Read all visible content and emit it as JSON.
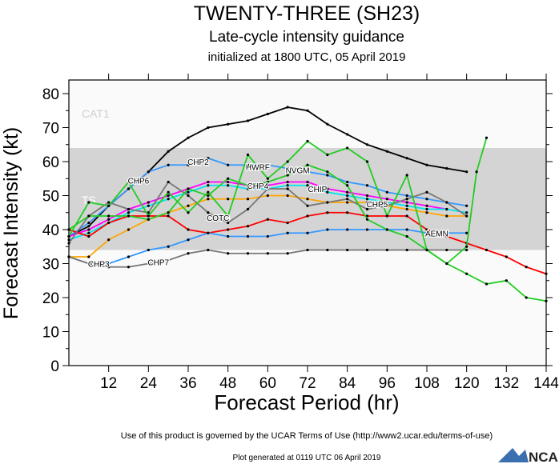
{
  "title": "TWENTY-THREE (SH23)",
  "subtitle": "Late-cycle intensity guidance",
  "initialized": "initialized at 1800 UTC, 05 April 2019",
  "footer_terms": "Use of this product is governed by the UCAR Terms of Use (http://www2.ucar.edu/terms-of-use)",
  "footer_generated": "Plot generated at 0119 UTC   06 April 2019",
  "logo_text": "NCAR",
  "chart_data": {
    "type": "line",
    "xlabel": "Forecast Period (hr)",
    "ylabel": "Forecast Intensity (kt)",
    "xlim": [
      0,
      144
    ],
    "ylim": [
      0,
      84
    ],
    "xticks": [
      12,
      24,
      36,
      48,
      60,
      72,
      84,
      96,
      108,
      120,
      132,
      144
    ],
    "yticks": [
      0,
      10,
      20,
      30,
      40,
      50,
      60,
      70,
      80
    ],
    "bands": [
      {
        "label": "CAT1",
        "from": 64,
        "to": 84,
        "color": "#fafafa"
      },
      {
        "label": "TS",
        "from": 34,
        "to": 64,
        "color": "#d4d4d4"
      },
      {
        "label": "",
        "from": 0,
        "to": 34,
        "color": "#fafafa"
      }
    ],
    "series": [
      {
        "name": "CHP6",
        "color": "#000000",
        "x": [
          0,
          6,
          12,
          18,
          24,
          30,
          36,
          42,
          48,
          54,
          60,
          66,
          72,
          78,
          84,
          90,
          96,
          102,
          108,
          114,
          120
        ],
        "values": [
          38,
          41,
          47,
          52,
          57,
          63,
          67,
          70,
          71,
          72,
          74,
          76,
          75,
          71,
          68,
          65,
          63,
          61,
          59,
          58,
          57
        ]
      },
      {
        "name": "CHP2",
        "color": "#3399ff",
        "x": [
          0,
          6,
          12,
          18,
          24,
          30,
          36,
          42,
          48,
          54,
          60,
          66,
          72,
          78,
          84,
          90,
          96,
          102,
          108,
          114,
          120
        ],
        "values": [
          38,
          42,
          47,
          52,
          57,
          59,
          59,
          61,
          59,
          59,
          59,
          58,
          57,
          56,
          54,
          53,
          51,
          50,
          49,
          48,
          47
        ]
      },
      {
        "name": "CHP4",
        "color": "#ff00ff",
        "x": [
          0,
          6,
          12,
          18,
          24,
          30,
          36,
          42,
          48,
          54,
          60,
          66,
          72,
          78,
          84,
          90,
          96,
          102,
          108,
          114
        ],
        "values": [
          38,
          40,
          43,
          46,
          48,
          50,
          52,
          54,
          54,
          53,
          53,
          54,
          54,
          52,
          51,
          50,
          49,
          48,
          47,
          46
        ]
      },
      {
        "name": "CHIP",
        "color": "#00e5ee",
        "x": [
          0,
          6,
          12,
          18,
          24,
          30,
          36,
          42,
          48,
          54,
          60,
          66,
          72,
          78,
          84,
          90,
          96,
          102,
          108,
          114,
          120
        ],
        "values": [
          37,
          39,
          42,
          45,
          47,
          49,
          51,
          53,
          53,
          52,
          52,
          53,
          53,
          51,
          50,
          49,
          48,
          47,
          46,
          46,
          45
        ]
      },
      {
        "name": "CHP5",
        "color": "#ffa500",
        "x": [
          0,
          6,
          12,
          18,
          24,
          30,
          36,
          42,
          48,
          54,
          60,
          66,
          72,
          78,
          84,
          90,
          96,
          102,
          108,
          114,
          120
        ],
        "values": [
          32,
          32,
          37,
          40,
          43,
          45,
          47,
          49,
          49,
          49,
          50,
          50,
          49,
          48,
          48,
          48,
          47,
          46,
          45,
          44,
          44
        ]
      },
      {
        "name": "AEMN",
        "color": "#ff0000",
        "x": [
          0,
          6,
          12,
          18,
          24,
          30,
          36,
          42,
          48,
          54,
          60,
          66,
          72,
          78,
          84,
          90,
          96,
          102,
          108,
          114,
          120,
          126,
          132,
          138,
          144
        ],
        "values": [
          40,
          38,
          42,
          44,
          44,
          44,
          40,
          39,
          40,
          41,
          43,
          42,
          44,
          45,
          45,
          44,
          44,
          44,
          40,
          38,
          36,
          34,
          32,
          29,
          27
        ]
      },
      {
        "name": "CHP3",
        "color": "#3399ff",
        "x": [
          0,
          6,
          12,
          18,
          24,
          30,
          36,
          42,
          48,
          54,
          60,
          66,
          72,
          78,
          84,
          90,
          96,
          102,
          108,
          114,
          120
        ],
        "values": [
          32,
          30,
          30,
          32,
          34,
          35,
          37,
          39,
          38,
          38,
          38,
          39,
          39,
          40,
          40,
          40,
          40,
          40,
          39,
          39,
          39
        ]
      },
      {
        "name": "CHP7",
        "color": "#777777",
        "x": [
          0,
          6,
          12,
          18,
          24,
          30,
          36,
          42,
          48,
          54,
          60,
          66,
          72,
          78,
          84,
          90,
          96,
          102,
          108,
          114,
          120
        ],
        "values": [
          32,
          30,
          29,
          29,
          30,
          31,
          33,
          34,
          33,
          33,
          33,
          33,
          34,
          34,
          34,
          34,
          34,
          34,
          34,
          34,
          34
        ]
      },
      {
        "name": "COTC",
        "color": "#777777",
        "x": [
          0,
          6,
          12,
          18,
          24,
          30,
          36,
          42,
          48,
          54,
          60,
          66,
          72,
          78,
          84,
          90,
          96,
          102,
          108,
          114,
          120
        ],
        "values": [
          36,
          44,
          48,
          46,
          45,
          54,
          50,
          45,
          42,
          46,
          52,
          52,
          47,
          48,
          49,
          46,
          47,
          49,
          51,
          48,
          44
        ]
      },
      {
        "name": "HWRF",
        "color": "#22cc22",
        "x": [
          0,
          6,
          12,
          18,
          24,
          30,
          36,
          42,
          48,
          54,
          60,
          66,
          72,
          78,
          84,
          90,
          96,
          102,
          108,
          114,
          120,
          123,
          126
        ],
        "values": [
          38,
          48,
          47,
          54,
          44,
          51,
          45,
          51,
          44,
          62,
          55,
          60,
          66,
          62,
          64,
          60,
          44,
          56,
          34,
          30,
          35,
          57,
          67
        ]
      },
      {
        "name": "NVGM",
        "color": "#22cc22",
        "x": [
          0,
          6,
          12,
          18,
          24,
          30,
          36,
          42,
          48,
          54,
          60,
          66,
          72,
          78,
          84,
          90,
          96,
          102,
          108,
          114,
          120,
          126,
          132,
          138,
          144
        ],
        "values": [
          40,
          44,
          44,
          44,
          43,
          45,
          52,
          50,
          55,
          53,
          54,
          56,
          59,
          57,
          53,
          43,
          40,
          38,
          34,
          30,
          27,
          24,
          25,
          20,
          19
        ]
      }
    ]
  }
}
